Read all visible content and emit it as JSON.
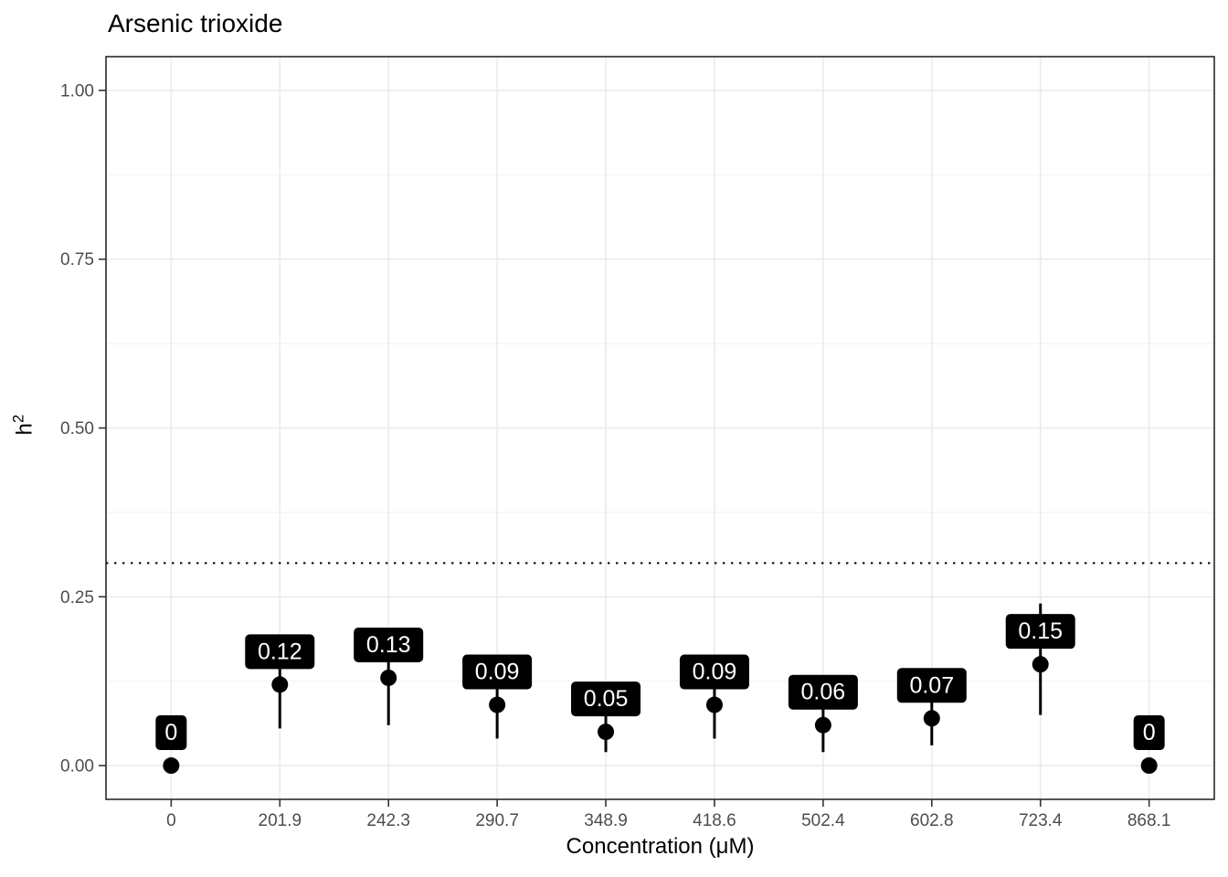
{
  "title": "Arsenic trioxide",
  "chart_data": {
    "type": "scatter",
    "title": "Arsenic trioxide",
    "xlabel": "Concentration (μM)",
    "ylabel": "h²",
    "ylabel_parts": {
      "base": "h",
      "exp": "2"
    },
    "categories": [
      "0",
      "201.9",
      "242.3",
      "290.7",
      "348.9",
      "418.6",
      "502.4",
      "602.8",
      "723.4",
      "868.1"
    ],
    "values": [
      0,
      0.12,
      0.13,
      0.09,
      0.05,
      0.09,
      0.06,
      0.07,
      0.15,
      0
    ],
    "point_labels": [
      "0",
      "0.12",
      "0.13",
      "0.09",
      "0.05",
      "0.09",
      "0.06",
      "0.07",
      "0.15",
      "0"
    ],
    "ci_low": [
      null,
      0.055,
      0.06,
      0.04,
      0.02,
      0.04,
      0.02,
      0.03,
      0.075,
      null
    ],
    "ci_high": [
      null,
      0.185,
      0.2,
      0.14,
      0.08,
      0.14,
      0.1,
      0.11,
      0.24,
      null
    ],
    "yticks": [
      "0.00",
      "0.25",
      "0.50",
      "0.75",
      "1.00"
    ],
    "ytick_values": [
      0,
      0.25,
      0.5,
      0.75,
      1
    ],
    "minor_ytick_values": [
      0.125,
      0.375,
      0.625,
      0.875
    ],
    "ylim": [
      0,
      1
    ],
    "reference_line": 0.3,
    "grid": true,
    "legend": "none",
    "colors": {
      "point": "#000000",
      "error_bar": "#000000",
      "label_fill": "#000000",
      "label_text": "#ffffff",
      "grid_major": "#ebebeb",
      "grid_minor": "#efefef",
      "panel_border": "#1a1a1a",
      "tick_mark": "#333333",
      "axis_text": "#4d4d4d",
      "reference_line": "#000000",
      "background": "#ffffff"
    }
  }
}
